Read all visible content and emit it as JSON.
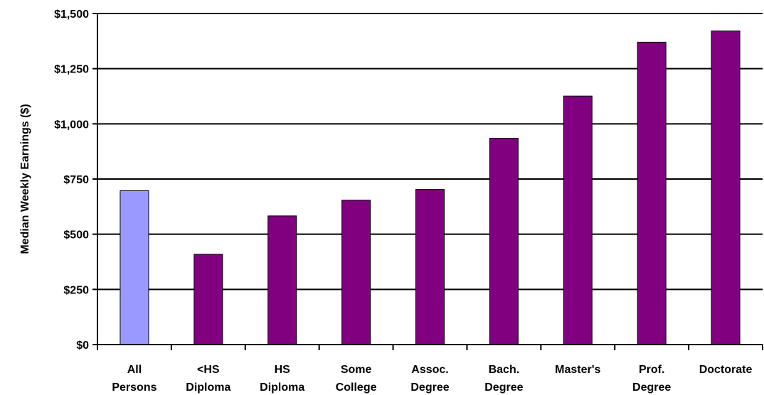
{
  "chart_data": {
    "type": "bar",
    "title": "",
    "xlabel": "",
    "ylabel": "Median Weekly Earnings ($)",
    "ylim": [
      0,
      1500
    ],
    "yticks": [
      0,
      250,
      500,
      750,
      1000,
      1250,
      1500
    ],
    "ytick_labels": [
      "$0",
      "$250",
      "$500",
      "$750",
      "$1,000",
      "$1,250",
      "$1,500"
    ],
    "categories": [
      [
        "All",
        "Persons"
      ],
      [
        "<HS",
        "Diploma"
      ],
      [
        "HS",
        "Diploma"
      ],
      [
        "Some",
        "College"
      ],
      [
        "Assoc.",
        "Degree"
      ],
      [
        "Bach.",
        "Degree"
      ],
      [
        "Master's"
      ],
      [
        "Prof.",
        "Degree"
      ],
      [
        "Doctorate"
      ]
    ],
    "values": [
      697,
      409,
      583,
      654,
      703,
      935,
      1126,
      1370,
      1421
    ],
    "bar_colors": [
      "#9999FF",
      "#800080",
      "#800080",
      "#800080",
      "#800080",
      "#800080",
      "#800080",
      "#800080",
      "#800080"
    ],
    "grid": true
  }
}
